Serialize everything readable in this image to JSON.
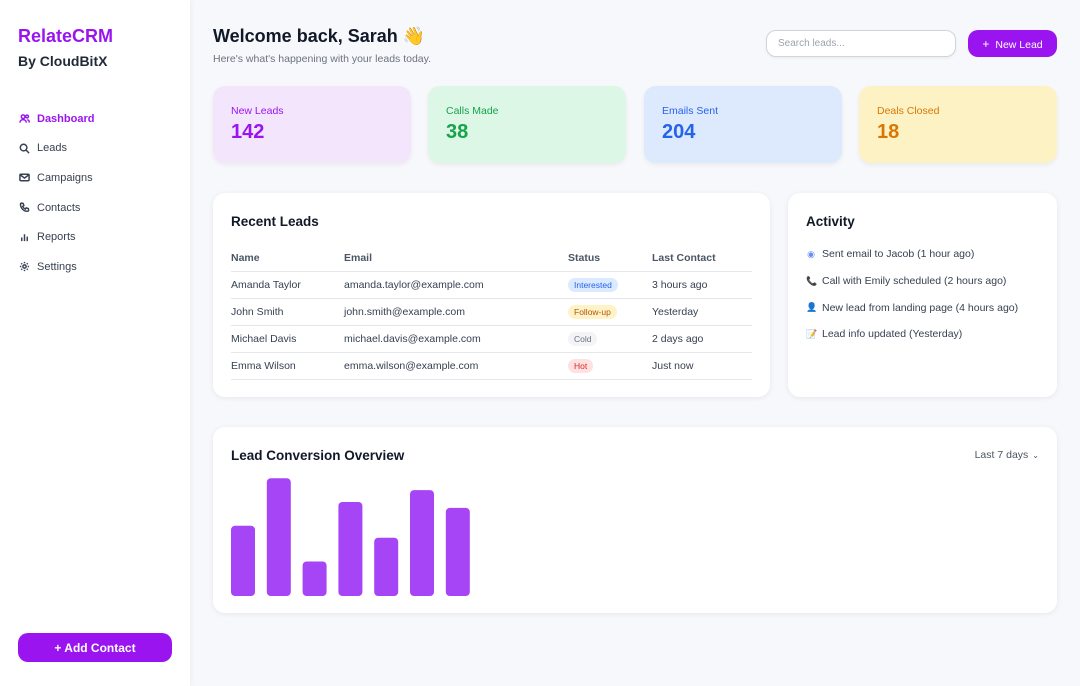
{
  "brand": {
    "name": "RelateCRM",
    "sub": "By CloudBitX"
  },
  "nav": [
    {
      "label": "Dashboard",
      "icon": "users-icon",
      "active": true
    },
    {
      "label": "Leads",
      "icon": "search-icon",
      "active": false
    },
    {
      "label": "Campaigns",
      "icon": "mail-icon",
      "active": false
    },
    {
      "label": "Contacts",
      "icon": "phone-icon",
      "active": false
    },
    {
      "label": "Reports",
      "icon": "bar-chart-icon",
      "active": false
    },
    {
      "label": "Settings",
      "icon": "gear-icon",
      "active": false
    }
  ],
  "add_contact_label": "+ Add Contact",
  "header": {
    "title": "Welcome back, Sarah 👋",
    "subtitle": "Here's what's happening with your leads today.",
    "search_placeholder": "Search leads...",
    "new_lead_plus": "+",
    "new_lead_label": "New Lead"
  },
  "stats": [
    {
      "label": "New Leads",
      "value": "142",
      "bg": "#f3e5fc",
      "label_color": "#9a14f0",
      "value_color": "#9a14f0"
    },
    {
      "label": "Calls Made",
      "value": "38",
      "bg": "#ddf7e6",
      "label_color": "#16a34a",
      "value_color": "#16a34a"
    },
    {
      "label": "Emails Sent",
      "value": "204",
      "bg": "#dde9fd",
      "label_color": "#2563eb",
      "value_color": "#2563eb"
    },
    {
      "label": "Deals Closed",
      "value": "18",
      "bg": "#fdf2c4",
      "label_color": "#d97706",
      "value_color": "#d97706"
    }
  ],
  "recent_leads": {
    "title": "Recent Leads",
    "columns": [
      "Name",
      "Email",
      "Status",
      "Last Contact"
    ],
    "rows": [
      {
        "name": "Amanda Taylor",
        "email": "amanda.taylor@example.com",
        "status": "Interested",
        "status_bg": "#dbeafe",
        "status_color": "#2563eb",
        "last": "3 hours ago"
      },
      {
        "name": "John Smith",
        "email": "john.smith@example.com",
        "status": "Follow-up",
        "status_bg": "#fef3c7",
        "status_color": "#b45309",
        "last": "Yesterday"
      },
      {
        "name": "Michael Davis",
        "email": "michael.davis@example.com",
        "status": "Cold",
        "status_bg": "#f3f4f6",
        "status_color": "#6b7280",
        "last": "2 days ago"
      },
      {
        "name": "Emma Wilson",
        "email": "emma.wilson@example.com",
        "status": "Hot",
        "status_bg": "#fee2e2",
        "status_color": "#dc2626",
        "last": "Just now"
      }
    ]
  },
  "activity": {
    "title": "Activity",
    "items": [
      {
        "icon": "email-icon",
        "glyph": "◉",
        "glyph_color": "#6b8cf5",
        "text": "Sent email to Jacob (1 hour ago)"
      },
      {
        "icon": "phone-icon",
        "glyph": "📞",
        "glyph_color": "#e11d48",
        "text": "Call with Emily scheduled (2 hours ago)"
      },
      {
        "icon": "user-icon",
        "glyph": "👤",
        "glyph_color": "#6366f1",
        "text": "New lead from landing page (4 hours ago)"
      },
      {
        "icon": "note-icon",
        "glyph": "📝",
        "glyph_color": "#a16207",
        "text": "Lead info updated (Yesterday)"
      }
    ]
  },
  "overview": {
    "title": "Lead Conversion Overview",
    "range_label": "Last 7 days",
    "bar_color": "#a645f5"
  },
  "chart_data": {
    "type": "bar",
    "values": [
      59,
      99,
      29,
      79,
      49,
      89,
      74
    ],
    "ylim": [
      0,
      100
    ]
  }
}
